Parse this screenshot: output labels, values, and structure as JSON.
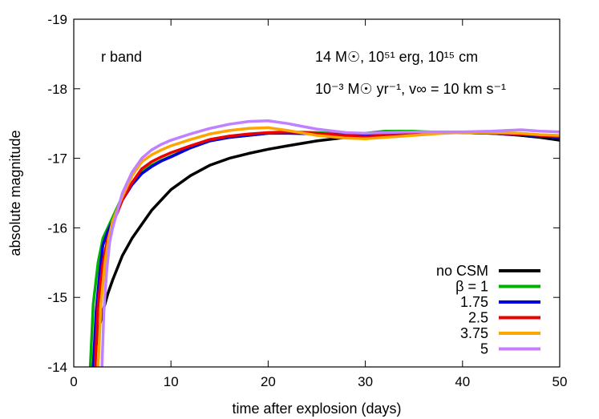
{
  "chart_data": {
    "type": "line",
    "xlabel": "time after explosion (days)",
    "ylabel": "absolute magnitude",
    "xlim": [
      0,
      50
    ],
    "ylim": [
      -14,
      -19
    ],
    "y_inverted": true,
    "xticks": [
      0,
      10,
      20,
      30,
      40,
      50
    ],
    "yticks": [
      -14,
      -15,
      -16,
      -17,
      -18,
      -19
    ],
    "xtick_labels": [
      "0",
      "10",
      "20",
      "30",
      "40",
      "50"
    ],
    "ytick_labels": [
      "-14",
      "-15",
      "-16",
      "-17",
      "-18",
      "-19"
    ],
    "grid": false,
    "legend_position": "bottom-right",
    "annotations": {
      "band": "r band",
      "params_line1": "14 M☉, 10⁵¹ erg, 10¹⁵ cm",
      "params_line2": "10⁻³ M☉ yr⁻¹, v∞ = 10 km s⁻¹"
    },
    "series": [
      {
        "name": "no CSM",
        "color": "#000000",
        "x": [
          2.0,
          2.5,
          3.0,
          3.5,
          4.0,
          5.0,
          6.0,
          7.0,
          8.0,
          9.0,
          10.0,
          12.0,
          14.0,
          16.0,
          18.0,
          20.0,
          22.0,
          25.0,
          28.0,
          30.0,
          32.0,
          35.0,
          38.0,
          40.0,
          43.0,
          46.0,
          48.0,
          50.0
        ],
        "y": [
          -14.0,
          -14.5,
          -14.8,
          -15.05,
          -15.25,
          -15.6,
          -15.85,
          -16.05,
          -16.25,
          -16.4,
          -16.55,
          -16.75,
          -16.9,
          -17.0,
          -17.07,
          -17.13,
          -17.18,
          -17.25,
          -17.3,
          -17.32,
          -17.34,
          -17.36,
          -17.37,
          -17.37,
          -17.36,
          -17.33,
          -17.3,
          -17.26
        ]
      },
      {
        "name": "β = 1",
        "color": "#00b000",
        "x": [
          1.7,
          2.0,
          2.5,
          3.0,
          3.5,
          4.0,
          5.0,
          6.0,
          7.0,
          8.0,
          9.0,
          10.0,
          12.0,
          14.0,
          16.0,
          18.0,
          20.0,
          22.0,
          25.0,
          28.0,
          30.0,
          32.0,
          35.0,
          38.0,
          40.0,
          43.0,
          46.0,
          48.0,
          50.0
        ],
        "y": [
          -14.0,
          -14.9,
          -15.5,
          -15.85,
          -16.0,
          -16.15,
          -16.45,
          -16.65,
          -16.8,
          -16.9,
          -16.97,
          -17.03,
          -17.15,
          -17.25,
          -17.3,
          -17.33,
          -17.36,
          -17.38,
          -17.37,
          -17.35,
          -17.36,
          -17.39,
          -17.39,
          -17.37,
          -17.37,
          -17.36,
          -17.34,
          -17.32,
          -17.3
        ]
      },
      {
        "name": "1.75",
        "color": "#0000e0",
        "x": [
          2.0,
          2.3,
          2.7,
          3.0,
          3.5,
          4.0,
          5.0,
          6.0,
          7.0,
          8.0,
          9.0,
          10.0,
          12.0,
          14.0,
          16.0,
          18.0,
          20.0,
          22.0,
          25.0,
          28.0,
          30.0,
          32.0,
          35.0,
          38.0,
          40.0,
          43.0,
          46.0,
          48.0,
          50.0
        ],
        "y": [
          -14.0,
          -14.8,
          -15.4,
          -15.75,
          -15.95,
          -16.1,
          -16.4,
          -16.62,
          -16.78,
          -16.88,
          -16.96,
          -17.02,
          -17.15,
          -17.25,
          -17.3,
          -17.33,
          -17.36,
          -17.36,
          -17.35,
          -17.34,
          -17.34,
          -17.36,
          -17.37,
          -17.37,
          -17.37,
          -17.36,
          -17.34,
          -17.32,
          -17.3
        ]
      },
      {
        "name": "2.5",
        "color": "#ee0000",
        "x": [
          2.2,
          2.5,
          3.0,
          3.5,
          4.0,
          5.0,
          6.0,
          7.0,
          8.0,
          9.0,
          10.0,
          12.0,
          14.0,
          16.0,
          18.0,
          20.0,
          22.0,
          25.0,
          28.0,
          30.0,
          32.0,
          35.0,
          38.0,
          40.0,
          43.0,
          46.0,
          48.0,
          50.0
        ],
        "y": [
          -14.0,
          -14.9,
          -15.5,
          -15.85,
          -16.05,
          -16.4,
          -16.65,
          -16.85,
          -16.95,
          -17.02,
          -17.08,
          -17.18,
          -17.27,
          -17.32,
          -17.35,
          -17.37,
          -17.38,
          -17.36,
          -17.33,
          -17.31,
          -17.33,
          -17.36,
          -17.37,
          -17.37,
          -17.36,
          -17.35,
          -17.33,
          -17.31
        ]
      },
      {
        "name": "3.75",
        "color": "#ffa500",
        "x": [
          2.5,
          2.8,
          3.2,
          3.6,
          4.0,
          5.0,
          6.0,
          7.0,
          8.0,
          9.0,
          10.0,
          12.0,
          14.0,
          16.0,
          18.0,
          20.0,
          22.0,
          25.0,
          28.0,
          30.0,
          32.0,
          35.0,
          38.0,
          40.0,
          43.0,
          46.0,
          48.0,
          50.0
        ],
        "y": [
          -14.0,
          -14.9,
          -15.5,
          -15.85,
          -16.1,
          -16.45,
          -16.75,
          -16.95,
          -17.05,
          -17.12,
          -17.18,
          -17.27,
          -17.35,
          -17.4,
          -17.43,
          -17.44,
          -17.4,
          -17.33,
          -17.29,
          -17.28,
          -17.3,
          -17.33,
          -17.36,
          -17.37,
          -17.37,
          -17.36,
          -17.34,
          -17.33
        ]
      },
      {
        "name": "5",
        "color": "#c080ff",
        "x": [
          2.9,
          3.1,
          3.4,
          3.7,
          4.0,
          4.5,
          5.0,
          6.0,
          7.0,
          8.0,
          9.0,
          10.0,
          12.0,
          14.0,
          16.0,
          18.0,
          20.0,
          22.0,
          25.0,
          28.0,
          30.0,
          32.0,
          35.0,
          38.0,
          40.0,
          43.0,
          46.0,
          48.0,
          50.0
        ],
        "y": [
          -14.0,
          -14.8,
          -15.4,
          -15.8,
          -16.0,
          -16.25,
          -16.5,
          -16.8,
          -17.0,
          -17.12,
          -17.2,
          -17.26,
          -17.35,
          -17.43,
          -17.49,
          -17.53,
          -17.54,
          -17.5,
          -17.42,
          -17.37,
          -17.36,
          -17.37,
          -17.38,
          -17.38,
          -17.38,
          -17.39,
          -17.41,
          -17.39,
          -17.38
        ]
      }
    ]
  }
}
